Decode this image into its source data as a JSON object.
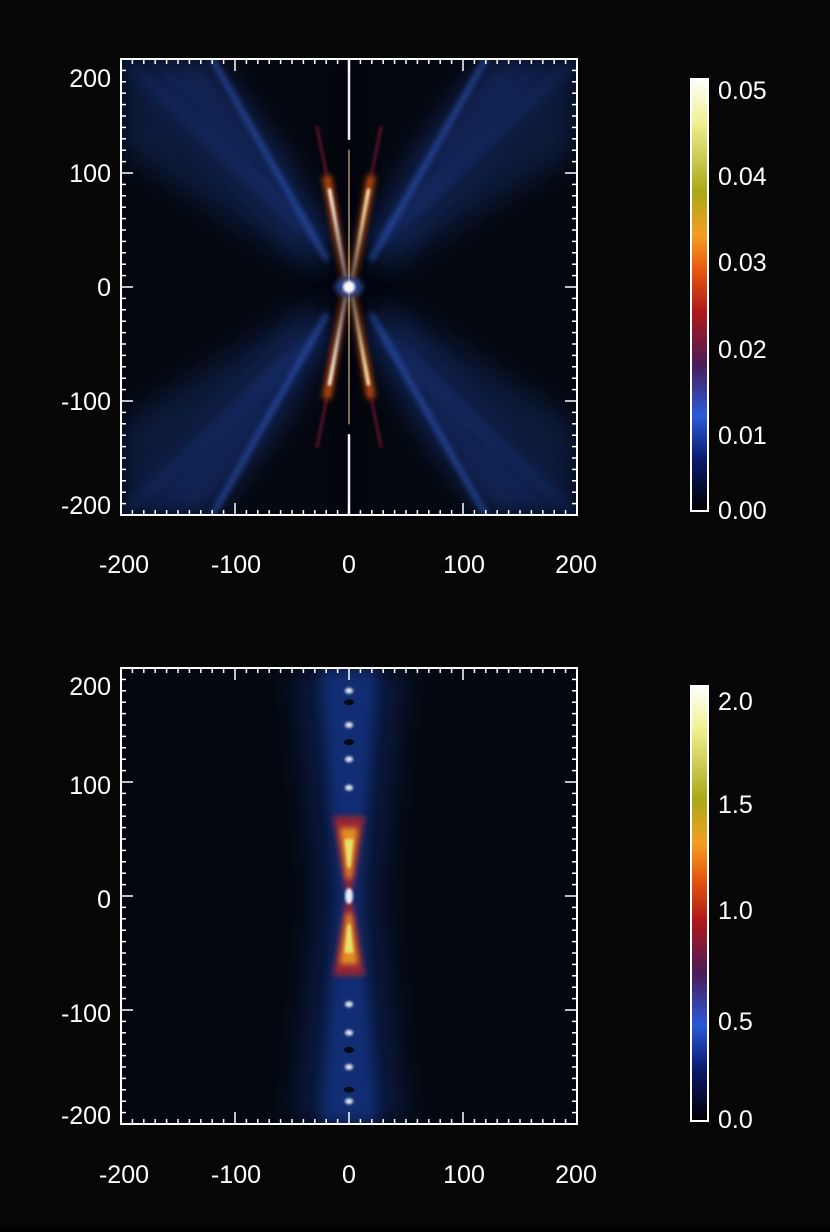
{
  "colors": {
    "background": "#060606",
    "plot_background": "#05070f",
    "axis": "#ffffff",
    "colormap_stops": [
      "#000000",
      "#0a1a6e",
      "#2a5ad8",
      "#4a1c58",
      "#b01818",
      "#e85a10",
      "#f2a020",
      "#a8a818",
      "#f0f090",
      "#ffffff"
    ]
  },
  "chart_data": [
    {
      "type": "heatmap",
      "title": "",
      "xlabel": "",
      "ylabel": "",
      "xlim": [
        -200,
        200
      ],
      "ylim": [
        -200,
        200
      ],
      "x_ticks": [
        -200,
        -100,
        0,
        100,
        200
      ],
      "y_ticks": [
        -200,
        -100,
        0,
        100,
        200
      ],
      "x_tick_labels": [
        "-200",
        "-100",
        "0",
        "100",
        "200"
      ],
      "y_tick_labels": [
        "-200",
        "-100",
        "0",
        "100",
        "200"
      ],
      "colorbar": {
        "range": [
          0.0,
          0.05
        ],
        "ticks": [
          0.0,
          0.01,
          0.02,
          0.03,
          0.04,
          0.05
        ],
        "tick_labels": [
          "0.00",
          "0.01",
          "0.02",
          "0.03",
          "0.04",
          "0.05"
        ]
      },
      "structure": "X-shaped bipolar outflow: bright diagonal ridges near the origin along the lines y = ±5x, a narrow bright jet along x = 0, diffuse blue lobes filling the upper and lower wedges"
    },
    {
      "type": "heatmap",
      "title": "",
      "xlabel": "",
      "ylabel": "",
      "xlim": [
        -200,
        200
      ],
      "ylim": [
        -200,
        200
      ],
      "x_ticks": [
        -200,
        -100,
        0,
        100,
        200
      ],
      "y_ticks": [
        -200,
        -100,
        0,
        100,
        200
      ],
      "x_tick_labels": [
        "-200",
        "-100",
        "0",
        "100",
        "200"
      ],
      "y_tick_labels": [
        "-200",
        "-100",
        "0",
        "100",
        "200"
      ],
      "colorbar": {
        "range": [
          0.0,
          2.0
        ],
        "ticks": [
          0.0,
          0.5,
          1.0,
          1.5,
          2.0
        ],
        "tick_labels": [
          "0.0",
          "0.5",
          "1.0",
          "1.5",
          "2.0"
        ]
      },
      "structure": "narrow vertical jet along x = 0 with hourglass-shaped bright knots between y = -70 and y = 70 and faint blue halo out to about |x| = 50"
    }
  ]
}
